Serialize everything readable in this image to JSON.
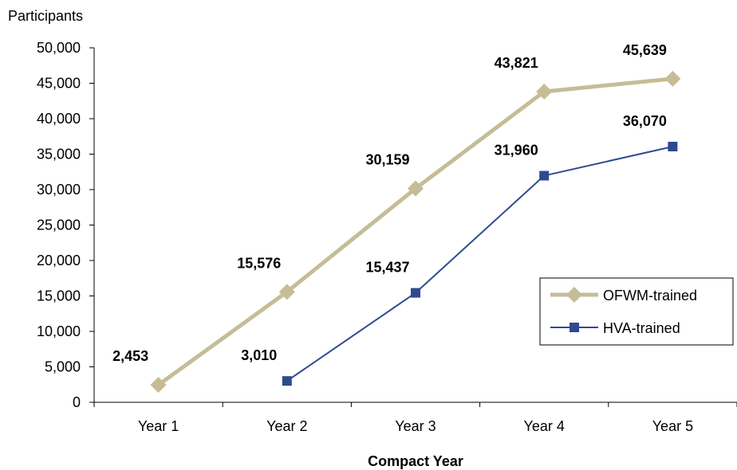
{
  "chart_data": {
    "type": "line",
    "ylabel": "Participants",
    "xlabel": "Compact Year",
    "categories": [
      "Year 1",
      "Year 2",
      "Year 3",
      "Year 4",
      "Year 5"
    ],
    "ylim": [
      0,
      50000
    ],
    "yticks": [
      0,
      5000,
      10000,
      15000,
      20000,
      25000,
      30000,
      35000,
      40000,
      45000,
      50000
    ],
    "ytick_labels": [
      "0",
      "5,000",
      "10,000",
      "15,000",
      "20,000",
      "25,000",
      "30,000",
      "35,000",
      "40,000",
      "45,000",
      "50,000"
    ],
    "grid": false,
    "legend_position": "right",
    "series": [
      {
        "name": "OFWM-trained",
        "values": [
          2453,
          15576,
          30159,
          43821,
          45639
        ],
        "labels": [
          "2,453",
          "15,576",
          "30,159",
          "43,821",
          "45,639"
        ],
        "color": "#C4BD97",
        "marker": "diamond"
      },
      {
        "name": "HVA-trained",
        "values": [
          null,
          3010,
          15437,
          31960,
          36070
        ],
        "labels": [
          "",
          "3,010",
          "15,437",
          "31,960",
          "36,070"
        ],
        "color": "#2E4A8F",
        "marker": "square"
      }
    ]
  }
}
